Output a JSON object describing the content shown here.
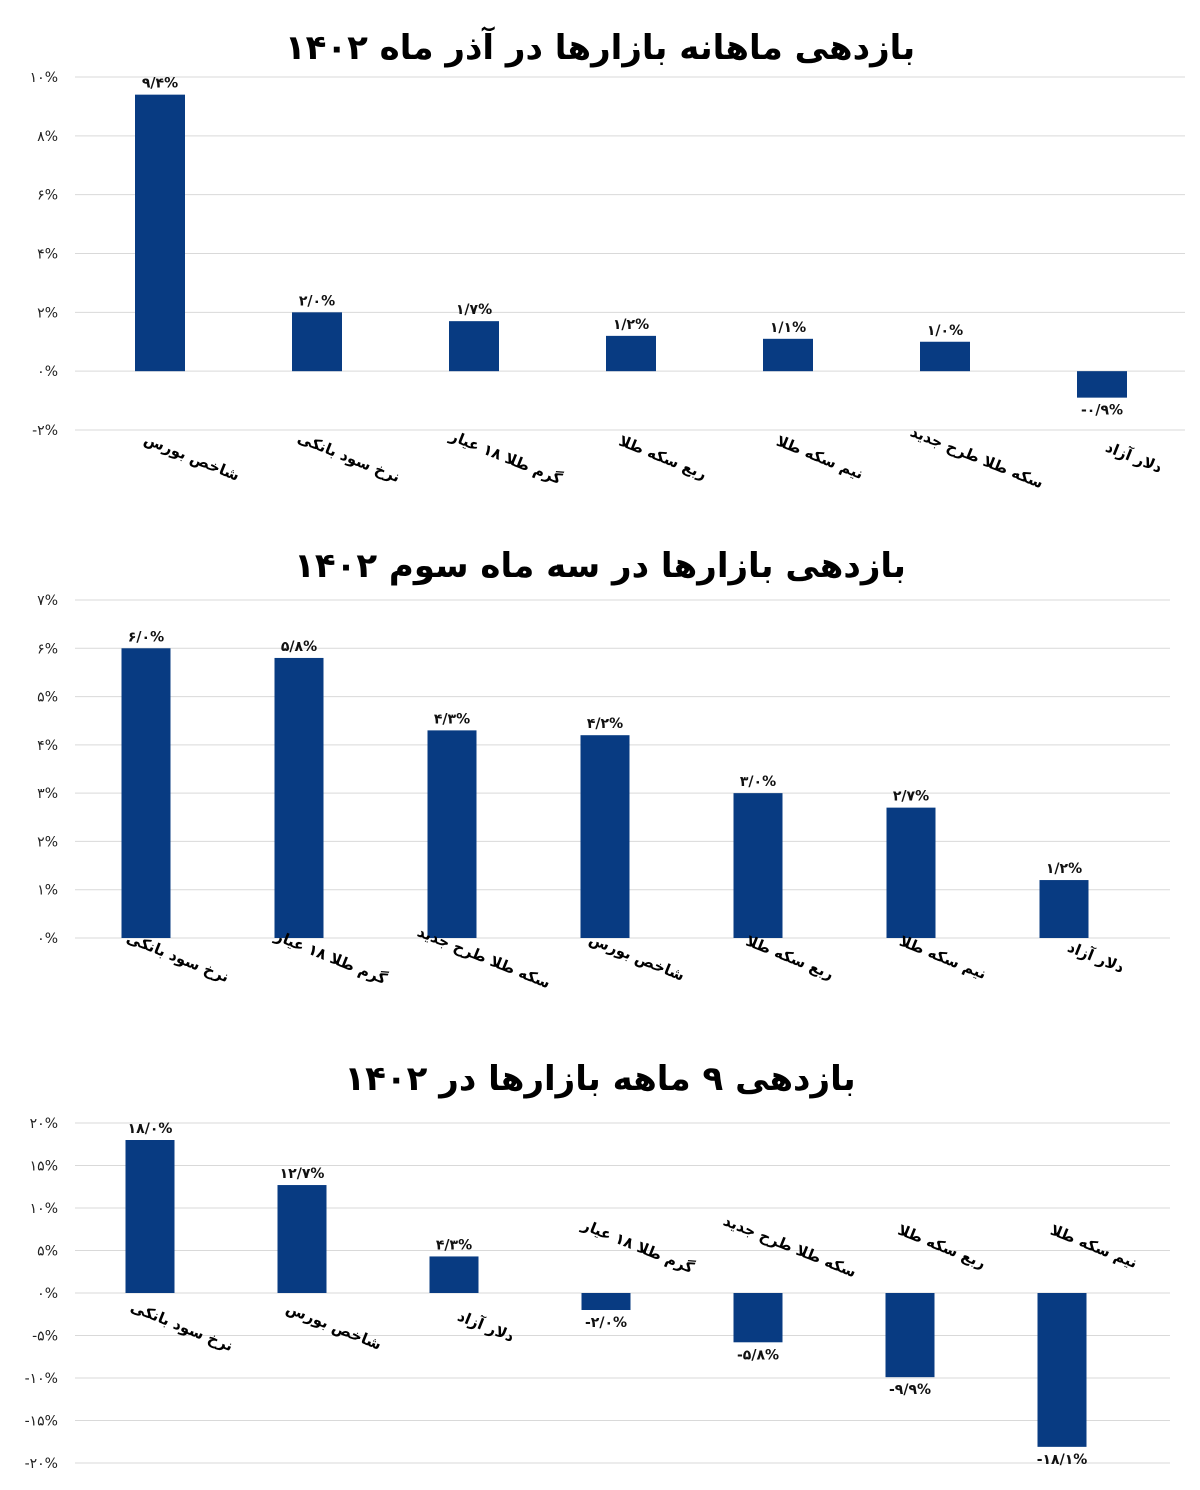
{
  "chart_data": [
    {
      "type": "bar",
      "title": "بازدهی ماهانه بازارها در آذر ماه ۱۴۰۲",
      "categories": [
        "شاخص بورس",
        "نرخ سود بانکی",
        "گرم طلا ۱۸ عیار",
        "ربع سکه طلا",
        "نیم سکه طلا",
        "سکه طلا طرح جدید",
        "دلار آزاد"
      ],
      "values": [
        9.4,
        2.0,
        1.7,
        1.2,
        1.1,
        1.0,
        -0.9
      ],
      "value_labels": [
        "۹/۴%",
        "۲/۰%",
        "۱/۷%",
        "۱/۲%",
        "۱/۱%",
        "۱/۰%",
        "-۰/۹%"
      ],
      "ylim": [
        -2,
        10
      ],
      "yticks": [
        10,
        8,
        6,
        4,
        2,
        0,
        -2
      ],
      "ytick_labels": [
        "۱۰%",
        "۸%",
        "۶%",
        "۴%",
        "۲%",
        "۰%",
        "-۲%"
      ],
      "grid": true,
      "color": "#083b82"
    },
    {
      "type": "bar",
      "title": "بازدهی بازارها در سه ماه سوم ۱۴۰۲",
      "categories": [
        "نرخ سود بانکی",
        "گرم طلا ۱۸ عیار",
        "سکه طلا طرح جدید",
        "شاخص بورس",
        "ربع سکه طلا",
        "نیم سکه طلا",
        "دلار آزاد"
      ],
      "values": [
        6.0,
        5.8,
        4.3,
        4.2,
        3.0,
        2.7,
        1.2
      ],
      "value_labels": [
        "۶/۰%",
        "۵/۸%",
        "۴/۳%",
        "۴/۲%",
        "۳/۰%",
        "۲/۷%",
        "۱/۲%"
      ],
      "ylim": [
        0,
        7
      ],
      "yticks": [
        7,
        6,
        5,
        4,
        3,
        2,
        1,
        0
      ],
      "ytick_labels": [
        "۷%",
        "۶%",
        "۵%",
        "۴%",
        "۳%",
        "۲%",
        "۱%",
        "۰%"
      ],
      "grid": true,
      "color": "#083b82"
    },
    {
      "type": "bar",
      "title": "بازدهی ۹ ماهه بازارها در ۱۴۰۲",
      "categories": [
        "نرخ سود بانکی",
        "شاخص بورس",
        "دلار آزاد",
        "گرم طلا ۱۸ عیار",
        "سکه طلا طرح جدید",
        "ربع سکه طلا",
        "نیم سکه طلا"
      ],
      "values": [
        18.0,
        12.7,
        4.3,
        -2.0,
        -5.8,
        -9.9,
        -18.1
      ],
      "value_labels": [
        "۱۸/۰%",
        "۱۲/۷%",
        "۴/۳%",
        "-۲/۰%",
        "-۵/۸%",
        "-۹/۹%",
        "-۱۸/۱%"
      ],
      "ylim": [
        -20,
        20
      ],
      "yticks": [
        20,
        15,
        10,
        5,
        0,
        -5,
        -10,
        -15,
        -20
      ],
      "ytick_labels": [
        "۲۰%",
        "۱۵%",
        "۱۰%",
        "۵%",
        "۰%",
        "-۵%",
        "-۱۰%",
        "-۱۵%",
        "-۲۰%"
      ],
      "grid": true,
      "color": "#083b82"
    }
  ]
}
